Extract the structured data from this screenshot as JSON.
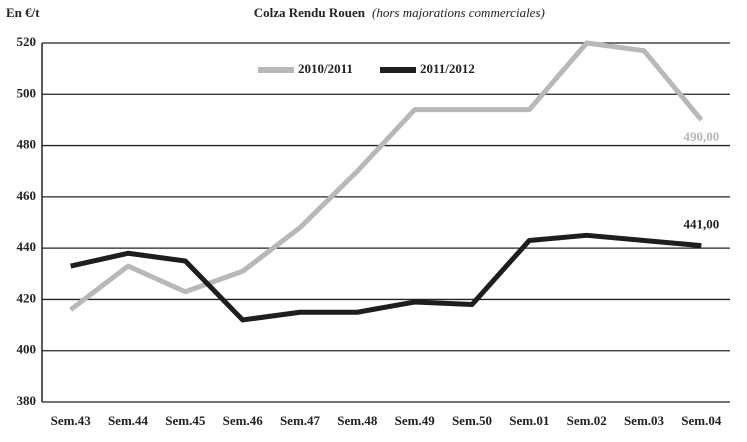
{
  "chart_data": {
    "type": "line",
    "title": "Colza Rendu Rouen",
    "subtitle": "(hors majorations commerciales)",
    "y_label": "En €/t",
    "categories": [
      "Sem.43",
      "Sem.44",
      "Sem.45",
      "Sem.46",
      "Sem.47",
      "Sem.48",
      "Sem.49",
      "Sem.50",
      "Sem.01",
      "Sem.02",
      "Sem.03",
      "Sem.04"
    ],
    "series": [
      {
        "name": "2010/2011",
        "color": "#b8b8b8",
        "values": [
          416,
          433,
          423,
          431,
          448,
          470,
          494,
          494,
          494,
          520,
          517,
          490
        ],
        "value_labels": [
          null,
          null,
          null,
          null,
          null,
          null,
          null,
          null,
          null,
          null,
          null,
          "490,00"
        ]
      },
      {
        "name": "2011/2012",
        "color": "#1e1e1e",
        "values": [
          433,
          438,
          435,
          412,
          415,
          415,
          419,
          418,
          443,
          445,
          443,
          441
        ],
        "value_labels": [
          null,
          null,
          null,
          null,
          null,
          null,
          null,
          null,
          null,
          null,
          null,
          "441,00"
        ]
      }
    ],
    "ylim": [
      380,
      520
    ],
    "yticks": [
      380,
      400,
      420,
      440,
      460,
      480,
      500,
      520
    ],
    "grid": true,
    "legend": "top"
  }
}
